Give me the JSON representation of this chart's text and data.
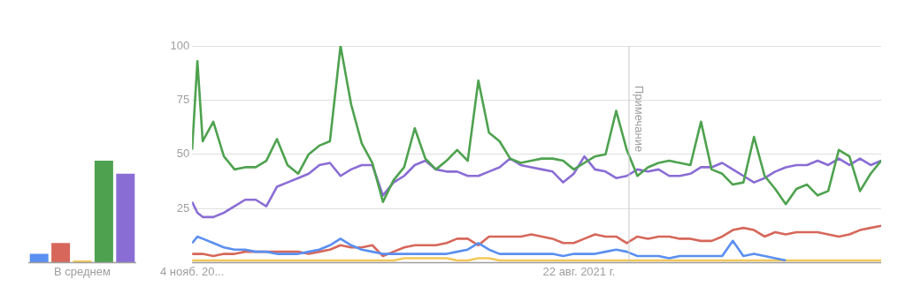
{
  "chart_data": [
    {
      "type": "bar",
      "categories": [
        null,
        null,
        "В среднем",
        null,
        null
      ],
      "ylim": [
        0,
        100
      ],
      "tick_labels": "x",
      "legend": false,
      "values": [
        4,
        9,
        1,
        47,
        41
      ],
      "colors": [
        "#5b8ff0",
        "#d6675a",
        "#f2c85a",
        "#4ea24f",
        "#8a6dd4"
      ]
    },
    {
      "type": "line",
      "marker": "none",
      "grid": "y",
      "legend": false,
      "xlim": [
        "2018-11-04",
        "2023-10-29"
      ],
      "xticks": [
        {
          "value": "2018-11-04",
          "label": "4 нояб. 20..."
        },
        {
          "value": "2021-08-22",
          "label": "22 авг. 2021 г."
        }
      ],
      "ylim": [
        0,
        100
      ],
      "yticks": [
        {
          "value": 0,
          "label": null
        },
        25,
        50,
        75,
        100
      ],
      "ref_lines": [
        {
          "axis": "x",
          "value": "2022-01-01",
          "label": "Примечание",
          "color": "#c8c8c8"
        }
      ],
      "x": [
        "2018-11-04",
        "2018-11-18",
        "2018-12-02",
        "2018-12-30",
        "2019-01-27",
        "2019-02-24",
        "2019-03-24",
        "2019-04-21",
        "2019-05-19",
        "2019-06-16",
        "2019-07-14",
        "2019-08-11",
        "2019-09-08",
        "2019-10-06",
        "2019-11-03",
        "2019-12-01",
        "2019-12-29",
        "2020-01-26",
        "2020-02-23",
        "2020-03-22",
        "2020-04-19",
        "2020-05-17",
        "2020-06-14",
        "2020-07-12",
        "2020-08-09",
        "2020-09-06",
        "2020-10-04",
        "2020-11-01",
        "2020-11-29",
        "2020-12-27",
        "2021-01-24",
        "2021-02-21",
        "2021-03-21",
        "2021-04-18",
        "2021-05-16",
        "2021-06-13",
        "2021-07-11",
        "2021-08-08",
        "2021-09-05",
        "2021-10-03",
        "2021-10-31",
        "2021-11-28",
        "2021-12-26",
        "2022-01-23",
        "2022-02-20",
        "2022-03-20",
        "2022-04-17",
        "2022-05-15",
        "2022-06-12",
        "2022-07-10",
        "2022-08-07",
        "2022-09-04",
        "2022-10-02",
        "2022-10-30",
        "2022-11-27",
        "2022-12-25",
        "2023-01-22",
        "2023-02-19",
        "2023-03-19",
        "2023-04-16",
        "2023-05-14",
        "2023-06-11",
        "2023-07-09",
        "2023-08-06",
        "2023-09-03",
        "2023-10-01",
        "2023-10-29"
      ],
      "series": [
        {
          "color": "#5b8ff0",
          "values": [
            9,
            12,
            11,
            9,
            7,
            6,
            6,
            5,
            5,
            4,
            4,
            4,
            5,
            6,
            8,
            11,
            8,
            6,
            5,
            4,
            4,
            4,
            4,
            4,
            4,
            4,
            5,
            6,
            9,
            6,
            4,
            4,
            4,
            4,
            4,
            4,
            3,
            4,
            4,
            4,
            5,
            6,
            5,
            3,
            3,
            3,
            2,
            3,
            3,
            3,
            3,
            3,
            10,
            3,
            4,
            3,
            2,
            1,
            null,
            null,
            null,
            null,
            null,
            null,
            null,
            null,
            null
          ]
        },
        {
          "color": "#d6675a",
          "values": [
            4,
            4,
            4,
            3,
            4,
            4,
            5,
            5,
            5,
            5,
            5,
            5,
            4,
            5,
            6,
            8,
            7,
            7,
            8,
            3,
            5,
            7,
            8,
            8,
            8,
            9,
            11,
            11,
            8,
            12,
            12,
            12,
            12,
            13,
            12,
            11,
            9,
            9,
            11,
            13,
            12,
            12,
            9,
            12,
            11,
            12,
            12,
            11,
            11,
            10,
            10,
            12,
            15,
            16,
            15,
            12,
            14,
            13,
            14,
            14,
            14,
            13,
            12,
            13,
            15,
            16,
            17
          ]
        },
        {
          "color": "#f2c85a",
          "values": [
            1,
            1,
            1,
            1,
            1,
            1,
            1,
            1,
            1,
            1,
            1,
            1,
            1,
            1,
            1,
            1,
            1,
            1,
            1,
            1,
            1,
            2,
            2,
            2,
            2,
            2,
            1,
            1,
            2,
            2,
            1,
            1,
            1,
            1,
            1,
            1,
            1,
            1,
            1,
            1,
            1,
            1,
            1,
            1,
            1,
            1,
            1,
            1,
            1,
            1,
            1,
            1,
            1,
            1,
            1,
            1,
            1,
            1,
            1,
            1,
            1,
            1,
            1,
            1,
            1,
            1,
            1
          ]
        },
        {
          "color": "#4ea24f",
          "values": [
            52,
            93,
            56,
            65,
            49,
            43,
            44,
            44,
            47,
            57,
            45,
            41,
            50,
            54,
            56,
            100,
            73,
            55,
            46,
            28,
            38,
            44,
            62,
            48,
            43,
            47,
            52,
            47,
            84,
            60,
            56,
            48,
            46,
            47,
            48,
            48,
            47,
            43,
            46,
            49,
            50,
            70,
            52,
            40,
            44,
            46,
            47,
            46,
            45,
            65,
            43,
            41,
            36,
            37,
            58,
            40,
            34,
            27,
            34,
            36,
            31,
            33,
            52,
            49,
            33,
            41,
            47
          ]
        },
        {
          "color": "#8a6dd4",
          "values": [
            28,
            23,
            21,
            21,
            23,
            26,
            29,
            29,
            26,
            35,
            37,
            39,
            41,
            45,
            46,
            40,
            43,
            45,
            45,
            31,
            37,
            40,
            45,
            47,
            43,
            42,
            42,
            40,
            40,
            42,
            44,
            48,
            45,
            44,
            43,
            42,
            37,
            41,
            49,
            43,
            42,
            39,
            40,
            43,
            42,
            43,
            40,
            40,
            41,
            44,
            44,
            46,
            43,
            40,
            37,
            39,
            42,
            44,
            45,
            45,
            47,
            45,
            48,
            45,
            48,
            45,
            47
          ]
        }
      ]
    }
  ]
}
